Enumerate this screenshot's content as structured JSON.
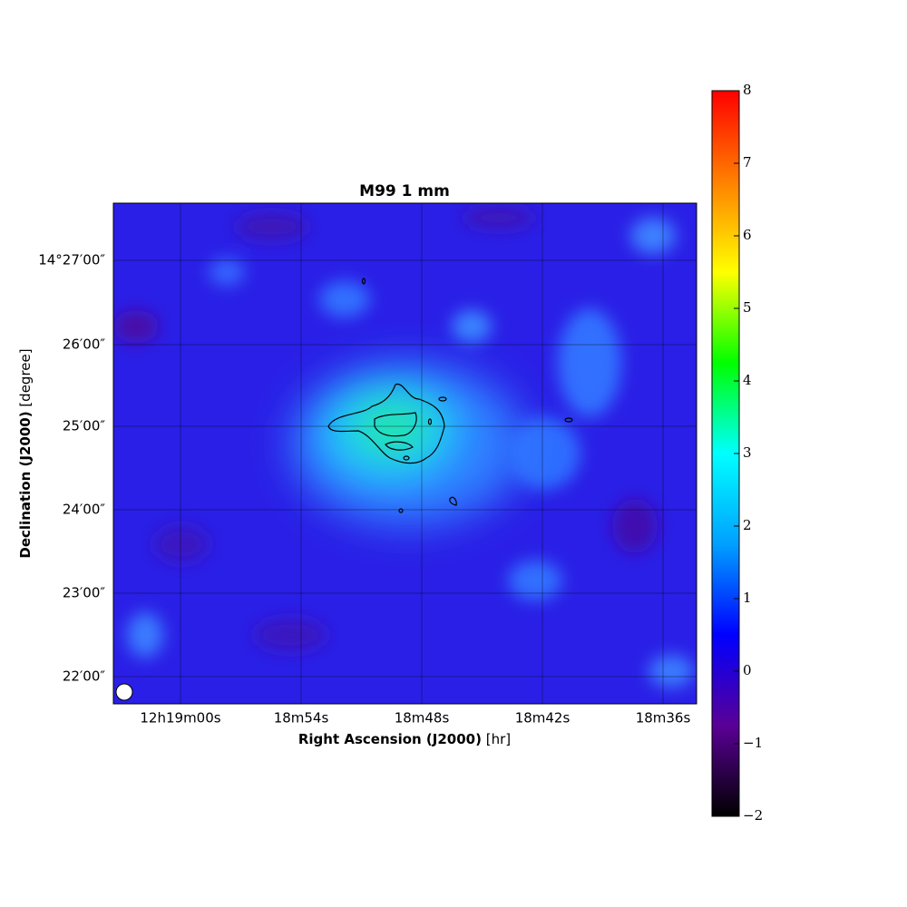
{
  "chart_data": {
    "type": "heatmap",
    "title": "M99 1 mm",
    "xlabel": "Right Ascension (J2000)",
    "xlabel_unit": "[hr]",
    "ylabel": "Declination (J2000)",
    "ylabel_unit": "[degree]",
    "xtick_labels": [
      "12h19m00s",
      "18m54s",
      "18m48s",
      "18m42s",
      "18m36s"
    ],
    "ytick_labels": [
      "14°27′00″",
      "26′00″",
      "25′00″",
      "24′00″",
      "23′00″",
      "22′00″"
    ],
    "grid": true,
    "clim": [
      -2,
      8
    ],
    "cticks": [
      {
        "value": -2,
        "label": "−2"
      },
      {
        "value": -1,
        "label": "−1"
      },
      0,
      1,
      2,
      3,
      4,
      5,
      6,
      7,
      8
    ],
    "colormap": [
      "#000000",
      "#5a0096",
      "#0000ff",
      "#00a0ff",
      "#00ffff",
      "#00ff00",
      "#ffff00",
      "#ff8000",
      "#ff0000"
    ]
  }
}
